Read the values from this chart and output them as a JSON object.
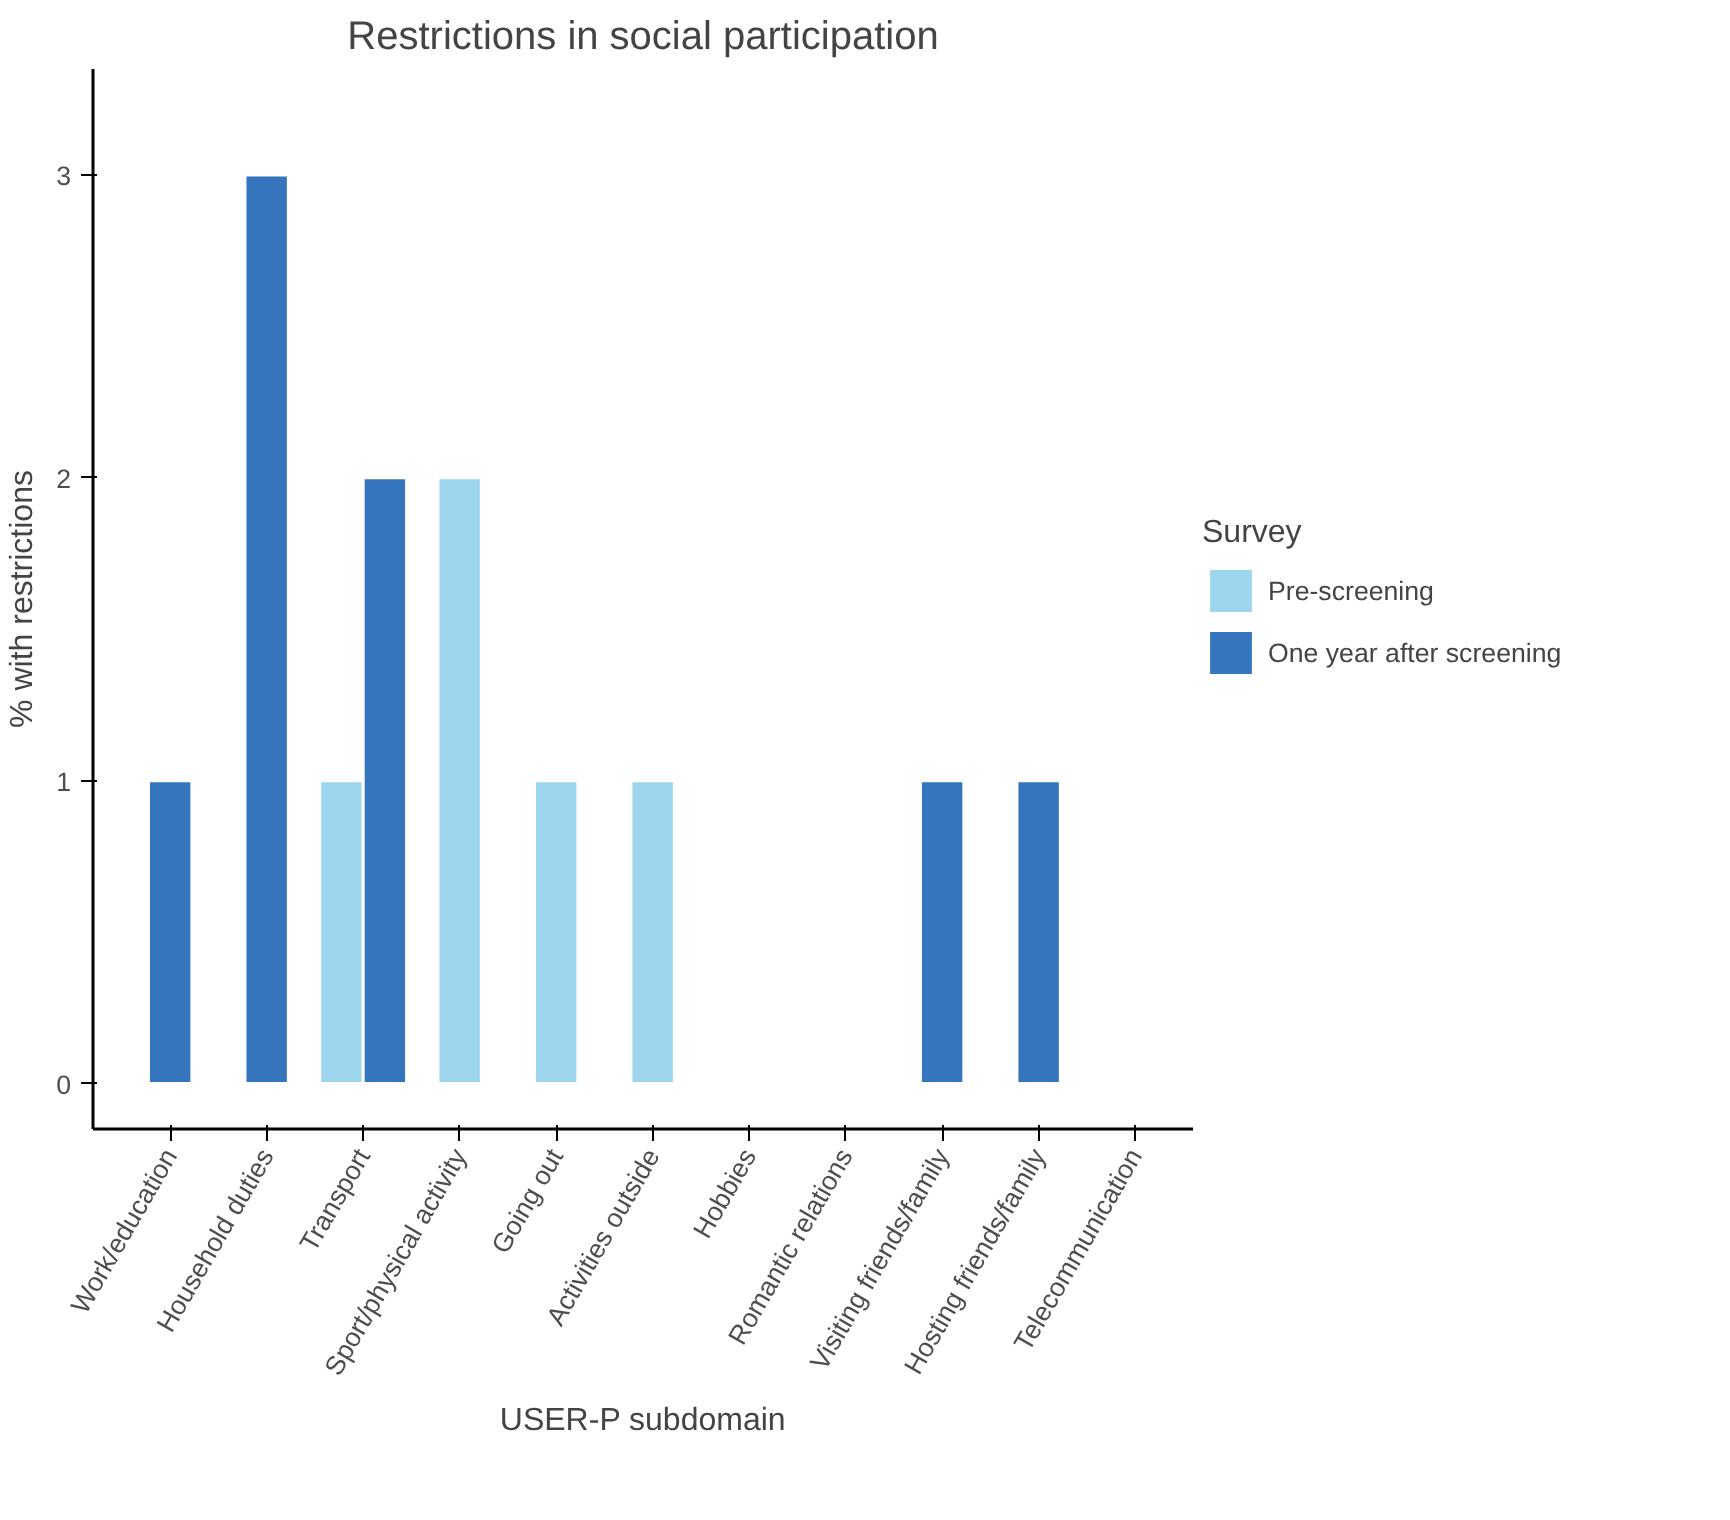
{
  "chart_data": {
    "type": "bar",
    "title": "Restrictions in social participation",
    "xlabel": "USER-P subdomain",
    "ylabel": "% with restrictions",
    "legend_title": "Survey",
    "categories": [
      "Work/education",
      "Household duties",
      "Transport",
      "Sport/physical activity",
      "Going out",
      "Activities outside",
      "Hobbies",
      "Romantic relations",
      "Visiting friends/family",
      "Hosting friends/family",
      "Telecommunication"
    ],
    "series": [
      {
        "name": "Pre-screening",
        "color": "#9dd4ee",
        "values": [
          null,
          null,
          1,
          2,
          1,
          1,
          null,
          null,
          null,
          null,
          null
        ]
      },
      {
        "name": "One year after screening",
        "color": "#3575bd",
        "values": [
          1,
          3,
          2,
          null,
          null,
          null,
          null,
          null,
          1,
          1,
          null
        ]
      }
    ],
    "ylim": [
      -0.15,
      3.35
    ],
    "yticks": [
      0,
      1,
      2,
      3
    ],
    "grid": false,
    "legend": "right"
  }
}
